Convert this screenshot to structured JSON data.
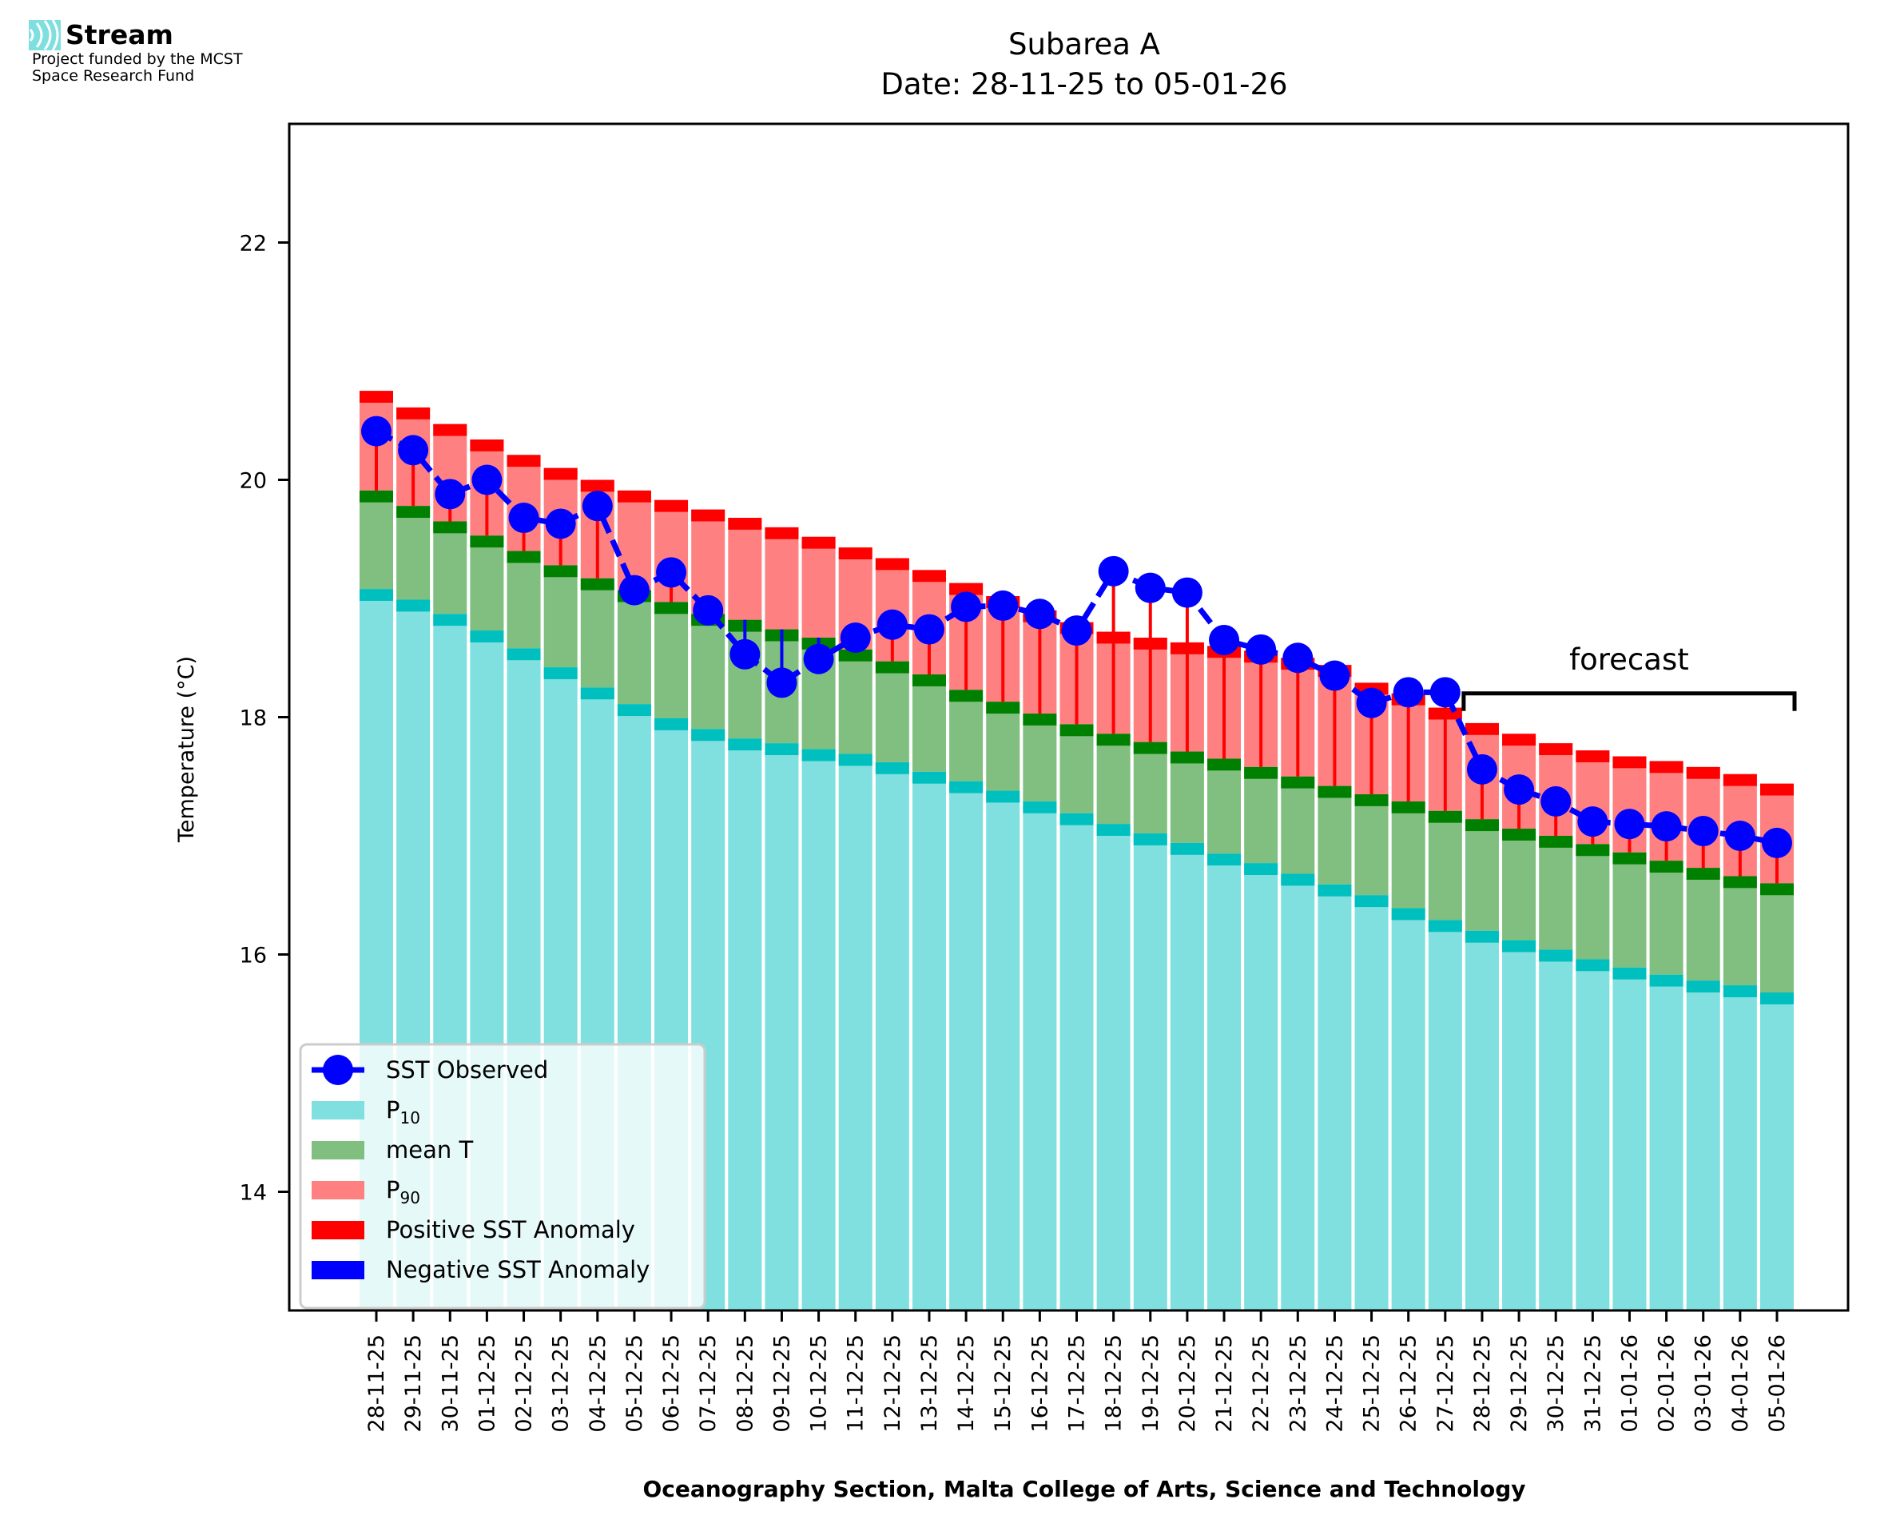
{
  "logo": {
    "brand": "Stream",
    "line1": "Project funded by the MCST",
    "line2": "Space Research Fund",
    "icon": "stream-waves-icon",
    "icon_color": "#7fdfdf"
  },
  "chart_data": {
    "type": "bar",
    "title": "Subarea A",
    "subtitle": "Date: 28-11-25 to 05-01-26",
    "xlabel": "Oceanography Section, Malta College of Arts, Science and Technology",
    "ylabel": "Temperature (°C)",
    "ylim": [
      13,
      23
    ],
    "yticks": [
      14,
      16,
      18,
      20,
      22
    ],
    "grid": false,
    "legend_position": "lower-left",
    "categories": [
      "28-11-25",
      "29-11-25",
      "30-11-25",
      "01-12-25",
      "02-12-25",
      "03-12-25",
      "04-12-25",
      "05-12-25",
      "06-12-25",
      "07-12-25",
      "08-12-25",
      "09-12-25",
      "10-12-25",
      "11-12-25",
      "12-12-25",
      "13-12-25",
      "14-12-25",
      "15-12-25",
      "16-12-25",
      "17-12-25",
      "18-12-25",
      "19-12-25",
      "20-12-25",
      "21-12-25",
      "22-12-25",
      "23-12-25",
      "24-12-25",
      "25-12-25",
      "26-12-25",
      "27-12-25",
      "28-12-25",
      "29-12-25",
      "30-12-25",
      "31-12-25",
      "01-01-26",
      "02-01-26",
      "03-01-26",
      "04-01-26",
      "05-01-26"
    ],
    "series": [
      {
        "name": "P10",
        "label_main": "P",
        "label_sub": "10",
        "color": "#80dfdf",
        "edge_color": "#00bfbf",
        "values": [
          19.08,
          18.99,
          18.87,
          18.73,
          18.58,
          18.42,
          18.25,
          18.11,
          17.99,
          17.9,
          17.82,
          17.78,
          17.73,
          17.69,
          17.62,
          17.54,
          17.46,
          17.38,
          17.29,
          17.19,
          17.1,
          17.02,
          16.94,
          16.85,
          16.77,
          16.68,
          16.59,
          16.5,
          16.39,
          16.29,
          16.2,
          16.12,
          16.04,
          15.96,
          15.89,
          15.83,
          15.78,
          15.74,
          15.68
        ]
      },
      {
        "name": "mean T",
        "label_main": "mean T",
        "label_sub": "",
        "color": "#80bf80",
        "edge_color": "#008000",
        "values": [
          19.91,
          19.78,
          19.65,
          19.53,
          19.4,
          19.28,
          19.17,
          19.07,
          18.97,
          18.87,
          18.82,
          18.74,
          18.67,
          18.57,
          18.47,
          18.36,
          18.23,
          18.13,
          18.03,
          17.94,
          17.86,
          17.79,
          17.71,
          17.65,
          17.58,
          17.5,
          17.42,
          17.35,
          17.29,
          17.21,
          17.14,
          17.06,
          17.0,
          16.93,
          16.86,
          16.79,
          16.73,
          16.66,
          16.6
        ]
      },
      {
        "name": "P90",
        "label_main": "P",
        "label_sub": "90",
        "color": "#ff8080",
        "edge_color": "#ff0000",
        "values": [
          20.75,
          20.61,
          20.47,
          20.34,
          20.21,
          20.1,
          20.0,
          19.91,
          19.83,
          19.75,
          19.68,
          19.6,
          19.52,
          19.43,
          19.34,
          19.24,
          19.13,
          19.02,
          18.9,
          18.8,
          18.72,
          18.67,
          18.63,
          18.6,
          18.56,
          18.5,
          18.44,
          18.29,
          18.2,
          18.08,
          17.95,
          17.86,
          17.78,
          17.72,
          17.67,
          17.63,
          17.58,
          17.52,
          17.44
        ]
      },
      {
        "name": "SST Observed",
        "label_main": "SST Observed",
        "label_sub": "",
        "color": "#0000ff",
        "type": "line",
        "values": [
          20.41,
          20.25,
          19.88,
          20.0,
          19.68,
          19.63,
          19.78,
          19.07,
          19.22,
          18.9,
          18.53,
          18.29,
          18.49,
          18.67,
          18.78,
          18.74,
          18.93,
          18.94,
          18.87,
          18.73,
          19.23,
          19.09,
          19.05,
          18.65,
          18.57,
          18.5,
          18.35,
          18.12,
          18.21,
          18.21,
          17.56,
          17.39,
          17.29,
          17.12,
          17.1,
          17.08,
          17.04,
          17.0,
          16.94
        ]
      }
    ],
    "anomaly_legend": [
      {
        "name": "Positive SST Anomaly",
        "color": "#ff0000"
      },
      {
        "name": "Negative SST Anomaly",
        "color": "#0000ff"
      }
    ],
    "annotations": [
      {
        "text": "forecast",
        "from": "27-12-25",
        "to": "05-01-26",
        "y": 18.2
      }
    ]
  }
}
